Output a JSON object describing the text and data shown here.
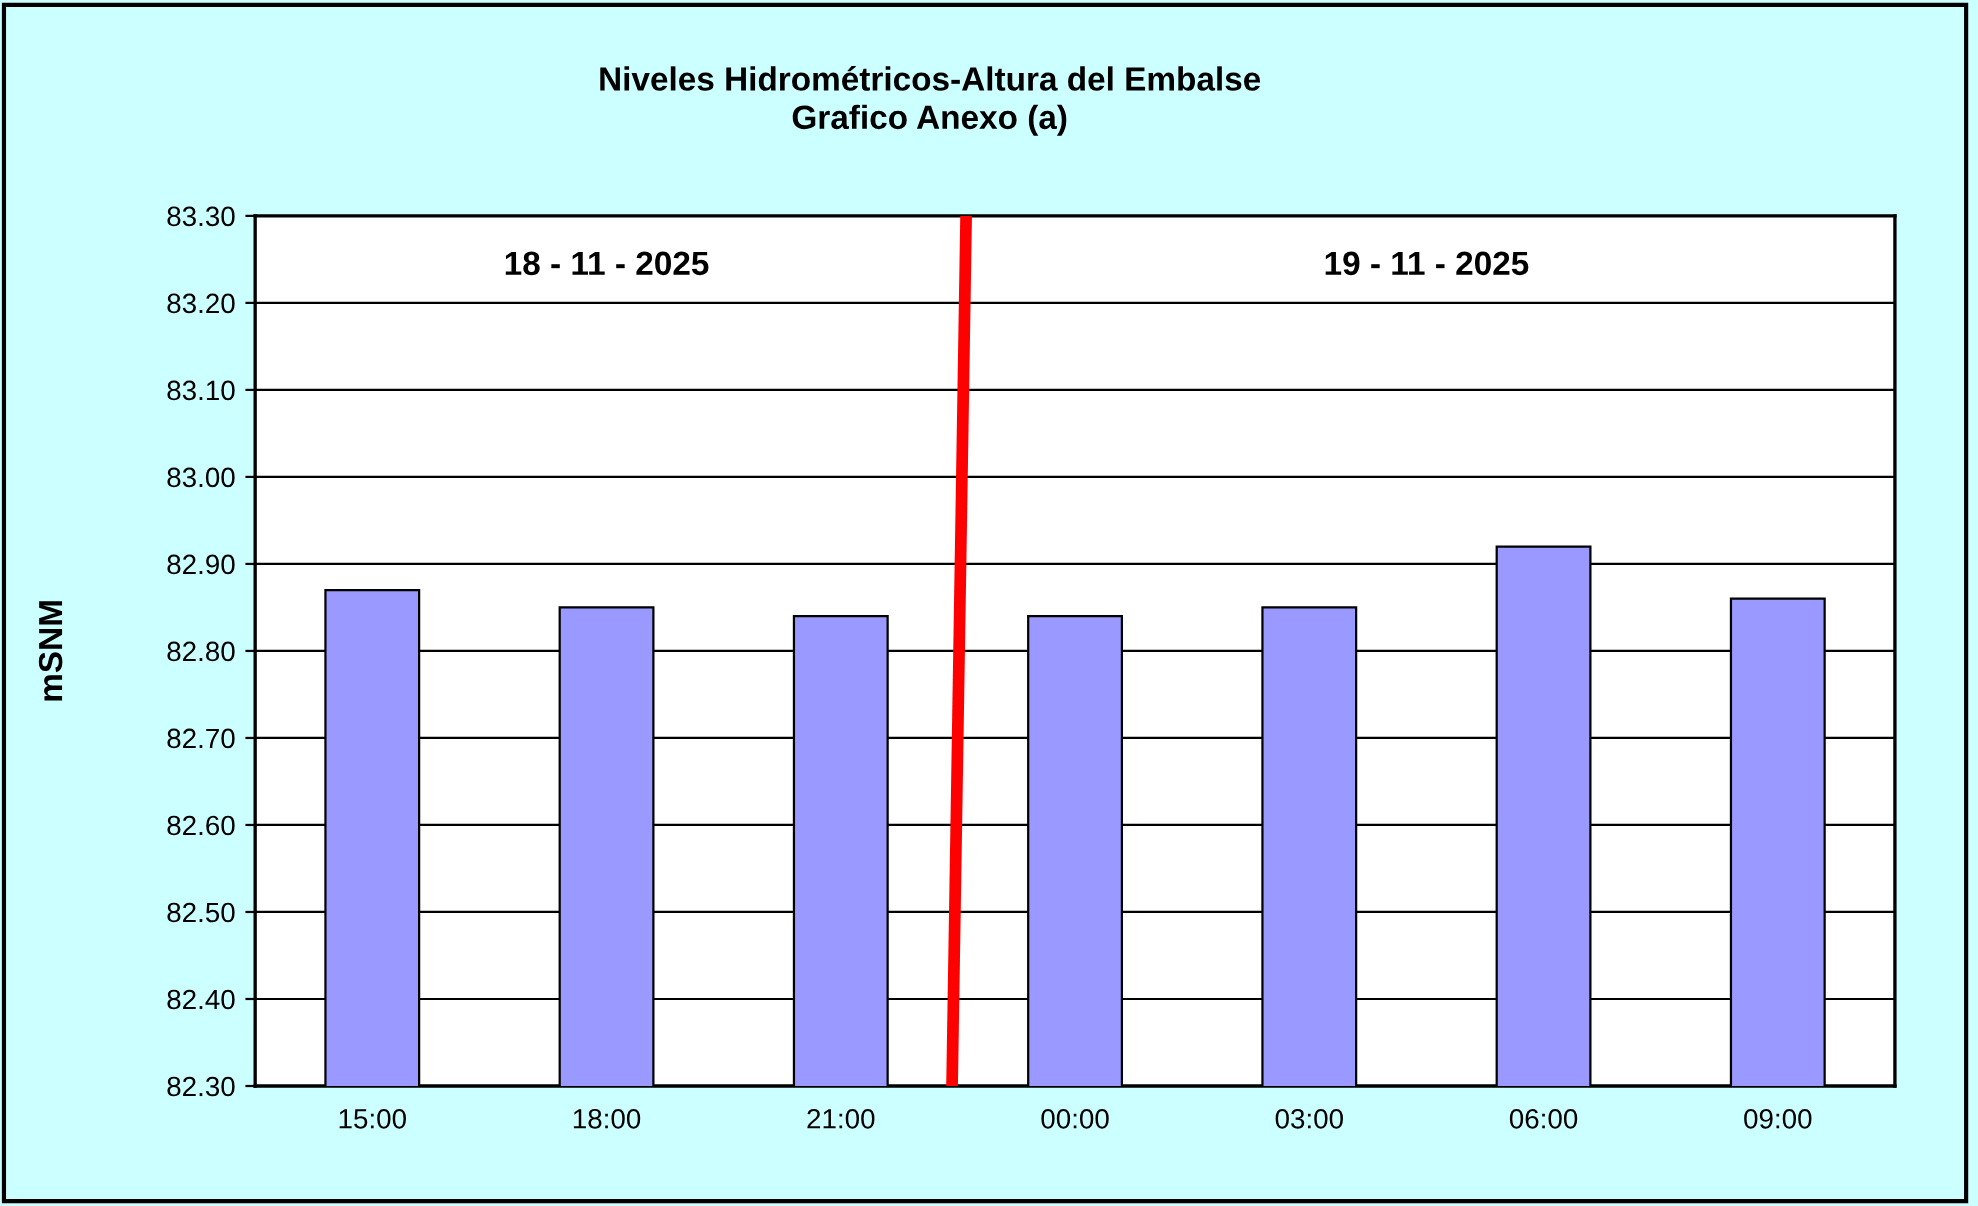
{
  "chart_data": {
    "type": "bar",
    "title": "Niveles Hidrométricos-Altura del Embalse\nGrafico Anexo (a)",
    "ylabel": "mSNM",
    "categories": [
      "15:00",
      "18:00",
      "21:00",
      "00:00",
      "03:00",
      "06:00",
      "09:00"
    ],
    "values": [
      82.87,
      82.85,
      82.84,
      82.84,
      82.85,
      82.92,
      82.86
    ],
    "color": "#9999ff",
    "ylim": [
      82.3,
      83.3
    ],
    "yticks": [
      {
        "value": 82.3,
        "label": "82.30"
      },
      {
        "value": 82.4,
        "label": "82.40"
      },
      {
        "value": 82.5,
        "label": "82.50"
      },
      {
        "value": 82.6,
        "label": "82.60"
      },
      {
        "value": 82.7,
        "label": "82.70"
      },
      {
        "value": 82.8,
        "label": "82.80"
      },
      {
        "value": 82.9,
        "label": "82.90"
      },
      {
        "value": 83.0,
        "label": "83.00"
      },
      {
        "value": 83.1,
        "label": "83.10"
      },
      {
        "value": 83.2,
        "label": "83.20"
      },
      {
        "value": 83.3,
        "label": "83.30"
      }
    ],
    "grid": "y",
    "annotations": [
      "18 - 11 - 2025",
      "19 - 11 - 2025"
    ]
  }
}
